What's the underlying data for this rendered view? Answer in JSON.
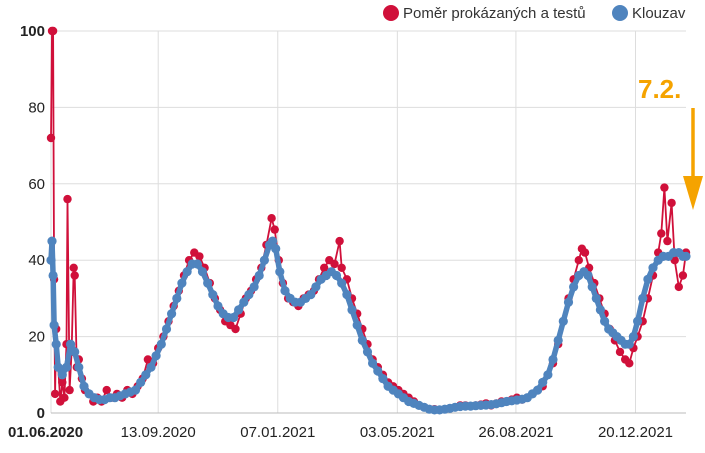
{
  "chart_data": {
    "type": "line",
    "ylim": [
      0,
      100
    ],
    "y_ticks": [
      {
        "value": 0,
        "label": "0"
      },
      {
        "value": 20,
        "label": "20"
      },
      {
        "value": 40,
        "label": "40"
      },
      {
        "value": 60,
        "label": "60"
      },
      {
        "value": 80,
        "label": "80"
      },
      {
        "value": 100,
        "label": "100"
      }
    ],
    "x_range": [
      "2020-06-01",
      "2022-02-07"
    ],
    "x_ticks": [
      {
        "date": "2020-06-01",
        "label": "01.06.2020"
      },
      {
        "date": "2020-09-13",
        "label": "13.09.2020"
      },
      {
        "date": "2021-01-07",
        "label": "07.01.2021"
      },
      {
        "date": "2021-05-03",
        "label": "03.05.2021"
      },
      {
        "date": "2021-08-26",
        "label": "26.08.2021"
      },
      {
        "date": "2021-12-20",
        "label": "20.12.2021"
      }
    ],
    "grid": true,
    "legend_position": "top-right",
    "annotation": {
      "label": "7.2.",
      "date": "2022-02-07",
      "color": "#f5a300"
    },
    "series": [
      {
        "name": "Poměr prokázaných a testů",
        "color": "#d0103a",
        "points": [
          [
            "2020-06-01",
            72
          ],
          [
            "2020-06-02",
            100
          ],
          [
            "2020-06-03",
            100
          ],
          [
            "2020-06-04",
            35
          ],
          [
            "2020-06-05",
            5
          ],
          [
            "2020-06-06",
            22
          ],
          [
            "2020-06-08",
            12
          ],
          [
            "2020-06-10",
            3
          ],
          [
            "2020-06-12",
            8
          ],
          [
            "2020-06-14",
            4
          ],
          [
            "2020-06-16",
            18
          ],
          [
            "2020-06-17",
            56
          ],
          [
            "2020-06-19",
            6
          ],
          [
            "2020-06-21",
            16
          ],
          [
            "2020-06-23",
            38
          ],
          [
            "2020-06-24",
            36
          ],
          [
            "2020-06-26",
            12
          ],
          [
            "2020-06-28",
            14
          ],
          [
            "2020-07-01",
            9
          ],
          [
            "2020-07-04",
            6
          ],
          [
            "2020-07-08",
            5
          ],
          [
            "2020-07-12",
            3
          ],
          [
            "2020-07-16",
            4
          ],
          [
            "2020-07-20",
            3
          ],
          [
            "2020-07-25",
            6
          ],
          [
            "2020-07-30",
            4
          ],
          [
            "2020-08-04",
            5
          ],
          [
            "2020-08-09",
            4
          ],
          [
            "2020-08-14",
            6
          ],
          [
            "2020-08-19",
            5
          ],
          [
            "2020-08-24",
            7
          ],
          [
            "2020-08-29",
            9
          ],
          [
            "2020-09-03",
            14
          ],
          [
            "2020-09-08",
            13
          ],
          [
            "2020-09-13",
            17
          ],
          [
            "2020-09-18",
            20
          ],
          [
            "2020-09-23",
            24
          ],
          [
            "2020-09-28",
            28
          ],
          [
            "2020-10-03",
            32
          ],
          [
            "2020-10-08",
            36
          ],
          [
            "2020-10-13",
            40
          ],
          [
            "2020-10-18",
            42
          ],
          [
            "2020-10-23",
            41
          ],
          [
            "2020-10-28",
            38
          ],
          [
            "2020-11-02",
            34
          ],
          [
            "2020-11-07",
            30
          ],
          [
            "2020-11-12",
            27
          ],
          [
            "2020-11-17",
            24
          ],
          [
            "2020-11-22",
            23
          ],
          [
            "2020-11-27",
            22
          ],
          [
            "2020-12-02",
            26
          ],
          [
            "2020-12-07",
            30
          ],
          [
            "2020-12-12",
            32
          ],
          [
            "2020-12-17",
            35
          ],
          [
            "2020-12-22",
            38
          ],
          [
            "2020-12-27",
            44
          ],
          [
            "2021-01-01",
            51
          ],
          [
            "2021-01-04",
            48
          ],
          [
            "2021-01-08",
            40
          ],
          [
            "2021-01-12",
            34
          ],
          [
            "2021-01-17",
            30
          ],
          [
            "2021-01-22",
            29
          ],
          [
            "2021-01-27",
            28
          ],
          [
            "2021-02-01",
            30
          ],
          [
            "2021-02-06",
            31
          ],
          [
            "2021-02-11",
            32
          ],
          [
            "2021-02-16",
            35
          ],
          [
            "2021-02-21",
            38
          ],
          [
            "2021-02-26",
            40
          ],
          [
            "2021-03-03",
            39
          ],
          [
            "2021-03-08",
            45
          ],
          [
            "2021-03-10",
            38
          ],
          [
            "2021-03-15",
            35
          ],
          [
            "2021-03-20",
            30
          ],
          [
            "2021-03-25",
            26
          ],
          [
            "2021-03-30",
            22
          ],
          [
            "2021-04-04",
            18
          ],
          [
            "2021-04-09",
            14
          ],
          [
            "2021-04-14",
            12
          ],
          [
            "2021-04-19",
            10
          ],
          [
            "2021-04-24",
            8
          ],
          [
            "2021-04-29",
            7
          ],
          [
            "2021-05-04",
            6
          ],
          [
            "2021-05-09",
            5
          ],
          [
            "2021-05-14",
            4
          ],
          [
            "2021-05-19",
            3
          ],
          [
            "2021-05-24",
            2
          ],
          [
            "2021-05-29",
            1.5
          ],
          [
            "2021-06-03",
            1
          ],
          [
            "2021-06-08",
            1
          ],
          [
            "2021-06-13",
            0.8
          ],
          [
            "2021-06-18",
            1
          ],
          [
            "2021-06-23",
            1.2
          ],
          [
            "2021-06-28",
            1.5
          ],
          [
            "2021-07-03",
            2
          ],
          [
            "2021-07-08",
            2
          ],
          [
            "2021-07-13",
            1.8
          ],
          [
            "2021-07-18",
            2
          ],
          [
            "2021-07-23",
            2.2
          ],
          [
            "2021-07-28",
            2.5
          ],
          [
            "2021-08-02",
            2
          ],
          [
            "2021-08-07",
            2.5
          ],
          [
            "2021-08-12",
            3
          ],
          [
            "2021-08-17",
            3
          ],
          [
            "2021-08-22",
            3.5
          ],
          [
            "2021-08-27",
            4
          ],
          [
            "2021-09-01",
            3.5
          ],
          [
            "2021-09-06",
            4
          ],
          [
            "2021-09-11",
            5
          ],
          [
            "2021-09-16",
            6
          ],
          [
            "2021-09-21",
            7
          ],
          [
            "2021-09-26",
            10
          ],
          [
            "2021-10-01",
            13
          ],
          [
            "2021-10-06",
            18
          ],
          [
            "2021-10-11",
            24
          ],
          [
            "2021-10-16",
            30
          ],
          [
            "2021-10-21",
            35
          ],
          [
            "2021-10-26",
            40
          ],
          [
            "2021-10-29",
            43
          ],
          [
            "2021-11-01",
            42
          ],
          [
            "2021-11-05",
            38
          ],
          [
            "2021-11-10",
            34
          ],
          [
            "2021-11-15",
            30
          ],
          [
            "2021-11-20",
            26
          ],
          [
            "2021-11-25",
            22
          ],
          [
            "2021-11-30",
            19
          ],
          [
            "2021-12-05",
            16
          ],
          [
            "2021-12-10",
            14
          ],
          [
            "2021-12-14",
            13
          ],
          [
            "2021-12-18",
            17
          ],
          [
            "2021-12-22",
            20
          ],
          [
            "2021-12-27",
            24
          ],
          [
            "2022-01-01",
            30
          ],
          [
            "2022-01-06",
            36
          ],
          [
            "2022-01-11",
            42
          ],
          [
            "2022-01-14",
            47
          ],
          [
            "2022-01-17",
            59
          ],
          [
            "2022-01-20",
            45
          ],
          [
            "2022-01-24",
            55
          ],
          [
            "2022-01-27",
            40
          ],
          [
            "2022-01-31",
            33
          ],
          [
            "2022-02-04",
            36
          ],
          [
            "2022-02-07",
            42
          ]
        ]
      },
      {
        "name": "Klouzav",
        "color": "#4f84be",
        "points": [
          [
            "2020-06-01",
            40
          ],
          [
            "2020-06-02",
            45
          ],
          [
            "2020-06-03",
            36
          ],
          [
            "2020-06-04",
            23
          ],
          [
            "2020-06-06",
            18
          ],
          [
            "2020-06-08",
            12
          ],
          [
            "2020-06-12",
            10
          ],
          [
            "2020-06-16",
            12
          ],
          [
            "2020-06-20",
            18
          ],
          [
            "2020-06-24",
            16
          ],
          [
            "2020-06-28",
            12
          ],
          [
            "2020-07-03",
            7
          ],
          [
            "2020-07-08",
            5
          ],
          [
            "2020-07-13",
            4
          ],
          [
            "2020-07-18",
            3.5
          ],
          [
            "2020-07-23",
            3.5
          ],
          [
            "2020-07-28",
            4
          ],
          [
            "2020-08-02",
            4
          ],
          [
            "2020-08-07",
            4.5
          ],
          [
            "2020-08-12",
            5
          ],
          [
            "2020-08-17",
            5.5
          ],
          [
            "2020-08-22",
            6
          ],
          [
            "2020-08-27",
            8
          ],
          [
            "2020-09-01",
            10
          ],
          [
            "2020-09-06",
            12
          ],
          [
            "2020-09-11",
            15
          ],
          [
            "2020-09-16",
            18
          ],
          [
            "2020-09-21",
            22
          ],
          [
            "2020-09-26",
            26
          ],
          [
            "2020-10-01",
            30
          ],
          [
            "2020-10-06",
            34
          ],
          [
            "2020-10-11",
            37
          ],
          [
            "2020-10-16",
            39
          ],
          [
            "2020-10-21",
            39
          ],
          [
            "2020-10-26",
            37
          ],
          [
            "2020-10-31",
            34
          ],
          [
            "2020-11-05",
            31
          ],
          [
            "2020-11-10",
            28
          ],
          [
            "2020-11-15",
            26
          ],
          [
            "2020-11-20",
            25
          ],
          [
            "2020-11-25",
            25
          ],
          [
            "2020-11-30",
            27
          ],
          [
            "2020-12-05",
            29
          ],
          [
            "2020-12-10",
            31
          ],
          [
            "2020-12-15",
            33
          ],
          [
            "2020-12-20",
            36
          ],
          [
            "2020-12-25",
            40
          ],
          [
            "2020-12-30",
            44
          ],
          [
            "2021-01-02",
            45
          ],
          [
            "2021-01-05",
            43
          ],
          [
            "2021-01-09",
            37
          ],
          [
            "2021-01-14",
            32
          ],
          [
            "2021-01-19",
            30
          ],
          [
            "2021-01-24",
            29
          ],
          [
            "2021-01-29",
            29
          ],
          [
            "2021-02-03",
            30
          ],
          [
            "2021-02-08",
            31
          ],
          [
            "2021-02-13",
            33
          ],
          [
            "2021-02-18",
            35
          ],
          [
            "2021-02-23",
            36
          ],
          [
            "2021-02-28",
            37
          ],
          [
            "2021-03-05",
            36
          ],
          [
            "2021-03-10",
            34
          ],
          [
            "2021-03-15",
            31
          ],
          [
            "2021-03-20",
            27
          ],
          [
            "2021-03-25",
            23
          ],
          [
            "2021-03-30",
            19
          ],
          [
            "2021-04-04",
            16
          ],
          [
            "2021-04-09",
            13
          ],
          [
            "2021-04-14",
            11
          ],
          [
            "2021-04-19",
            9
          ],
          [
            "2021-04-24",
            7
          ],
          [
            "2021-04-29",
            6
          ],
          [
            "2021-05-04",
            5
          ],
          [
            "2021-05-09",
            4
          ],
          [
            "2021-05-14",
            3
          ],
          [
            "2021-05-19",
            2.5
          ],
          [
            "2021-05-24",
            2
          ],
          [
            "2021-05-29",
            1.5
          ],
          [
            "2021-06-03",
            1
          ],
          [
            "2021-06-08",
            0.8
          ],
          [
            "2021-06-13",
            0.8
          ],
          [
            "2021-06-18",
            1
          ],
          [
            "2021-06-23",
            1.2
          ],
          [
            "2021-06-28",
            1.5
          ],
          [
            "2021-07-03",
            1.7
          ],
          [
            "2021-07-08",
            1.8
          ],
          [
            "2021-07-13",
            1.8
          ],
          [
            "2021-07-18",
            1.9
          ],
          [
            "2021-07-23",
            2
          ],
          [
            "2021-07-28",
            2.1
          ],
          [
            "2021-08-02",
            2.2
          ],
          [
            "2021-08-07",
            2.4
          ],
          [
            "2021-08-12",
            2.7
          ],
          [
            "2021-08-17",
            3
          ],
          [
            "2021-08-22",
            3.2
          ],
          [
            "2021-08-27",
            3.4
          ],
          [
            "2021-09-01",
            3.6
          ],
          [
            "2021-09-06",
            4
          ],
          [
            "2021-09-11",
            5
          ],
          [
            "2021-09-16",
            6
          ],
          [
            "2021-09-21",
            8
          ],
          [
            "2021-09-26",
            10
          ],
          [
            "2021-10-01",
            14
          ],
          [
            "2021-10-06",
            19
          ],
          [
            "2021-10-11",
            24
          ],
          [
            "2021-10-16",
            29
          ],
          [
            "2021-10-21",
            33
          ],
          [
            "2021-10-26",
            36
          ],
          [
            "2021-10-31",
            37
          ],
          [
            "2021-11-04",
            36
          ],
          [
            "2021-11-08",
            33
          ],
          [
            "2021-11-12",
            30
          ],
          [
            "2021-11-16",
            27
          ],
          [
            "2021-11-20",
            24
          ],
          [
            "2021-11-24",
            22
          ],
          [
            "2021-11-28",
            21
          ],
          [
            "2021-12-02",
            20
          ],
          [
            "2021-12-06",
            19
          ],
          [
            "2021-12-10",
            18
          ],
          [
            "2021-12-14",
            18
          ],
          [
            "2021-12-18",
            20
          ],
          [
            "2021-12-22",
            24
          ],
          [
            "2021-12-27",
            30
          ],
          [
            "2022-01-01",
            35
          ],
          [
            "2022-01-06",
            38
          ],
          [
            "2022-01-11",
            40
          ],
          [
            "2022-01-16",
            41
          ],
          [
            "2022-01-21",
            41
          ],
          [
            "2022-01-26",
            42
          ],
          [
            "2022-01-31",
            42
          ],
          [
            "2022-02-04",
            41
          ],
          [
            "2022-02-07",
            41
          ]
        ]
      }
    ]
  }
}
